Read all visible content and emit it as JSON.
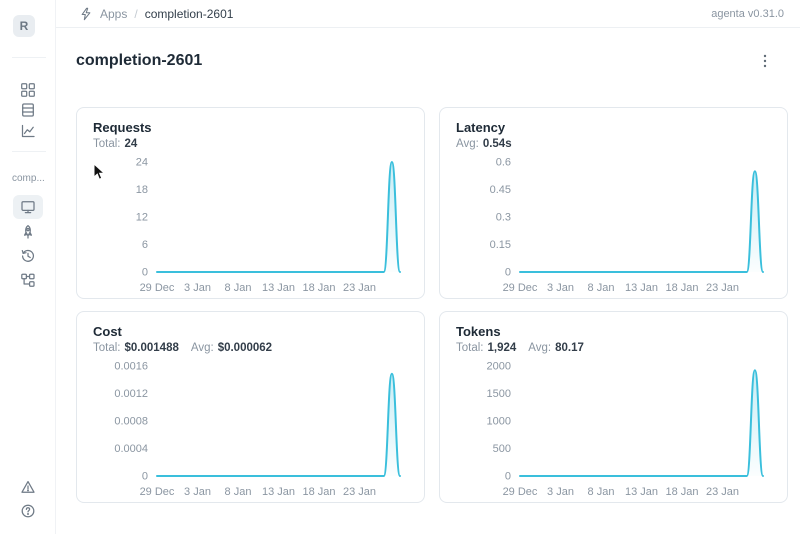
{
  "accent_color": "#3ABFDC",
  "header": {
    "breadcrumb": {
      "section": "Apps",
      "separator": "/",
      "current": "completion-2601"
    },
    "version_label": "agenta v0.31.0"
  },
  "sidebar": {
    "avatar_letter": "R",
    "app_label": "comp...",
    "icons": [
      "apps-grid",
      "table-rows",
      "line-chart",
      "monitor",
      "rocket",
      "history",
      "workflow-tree"
    ],
    "footer_icons": [
      "triangle-alert",
      "help-circle"
    ]
  },
  "page": {
    "title": "completion-2601",
    "menu_icon": "kebab-vertical"
  },
  "chart_data": [
    {
      "id": "requests",
      "type": "line",
      "title": "Requests",
      "stats": [
        {
          "label": "Total:",
          "value": "24"
        }
      ],
      "y_ticks": [
        "0",
        "6",
        "12",
        "18",
        "24"
      ],
      "y_max": 24,
      "x_tick_labels": [
        "29 Dec",
        "3 Jan",
        "8 Jan",
        "13 Jan",
        "18 Jan",
        "23 Jan"
      ],
      "x_tick_indices": [
        0,
        5,
        10,
        15,
        20,
        25
      ],
      "values": [
        0,
        0,
        0,
        0,
        0,
        0,
        0,
        0,
        0,
        0,
        0,
        0,
        0,
        0,
        0,
        0,
        0,
        0,
        0,
        0,
        0,
        0,
        0,
        0,
        0,
        0,
        0,
        0,
        0,
        24,
        0
      ]
    },
    {
      "id": "latency",
      "type": "line",
      "title": "Latency",
      "stats": [
        {
          "label": "Avg:",
          "value": "0.54s"
        }
      ],
      "y_ticks": [
        "0",
        "0.15",
        "0.3",
        "0.45",
        "0.6"
      ],
      "y_max": 0.6,
      "x_tick_labels": [
        "29 Dec",
        "3 Jan",
        "8 Jan",
        "13 Jan",
        "18 Jan",
        "23 Jan"
      ],
      "x_tick_indices": [
        0,
        5,
        10,
        15,
        20,
        25
      ],
      "values": [
        0,
        0,
        0,
        0,
        0,
        0,
        0,
        0,
        0,
        0,
        0,
        0,
        0,
        0,
        0,
        0,
        0,
        0,
        0,
        0,
        0,
        0,
        0,
        0,
        0,
        0,
        0,
        0,
        0,
        0.55,
        0
      ]
    },
    {
      "id": "cost",
      "type": "line",
      "title": "Cost",
      "stats": [
        {
          "label": "Total:",
          "value": "$0.001488"
        },
        {
          "label": "Avg:",
          "value": "$0.000062"
        }
      ],
      "y_ticks": [
        "0",
        "0.0004",
        "0.0008",
        "0.0012",
        "0.0016"
      ],
      "y_max": 0.0016,
      "x_tick_labels": [
        "29 Dec",
        "3 Jan",
        "8 Jan",
        "13 Jan",
        "18 Jan",
        "23 Jan"
      ],
      "x_tick_indices": [
        0,
        5,
        10,
        15,
        20,
        25
      ],
      "values": [
        0,
        0,
        0,
        0,
        0,
        0,
        0,
        0,
        0,
        0,
        0,
        0,
        0,
        0,
        0,
        0,
        0,
        0,
        0,
        0,
        0,
        0,
        0,
        0,
        0,
        0,
        0,
        0,
        0,
        0.001488,
        0
      ]
    },
    {
      "id": "tokens",
      "type": "line",
      "title": "Tokens",
      "stats": [
        {
          "label": "Total:",
          "value": "1,924"
        },
        {
          "label": "Avg:",
          "value": "80.17"
        }
      ],
      "y_ticks": [
        "0",
        "500",
        "1000",
        "1500",
        "2000"
      ],
      "y_max": 2000,
      "x_tick_labels": [
        "29 Dec",
        "3 Jan",
        "8 Jan",
        "13 Jan",
        "18 Jan",
        "23 Jan"
      ],
      "x_tick_indices": [
        0,
        5,
        10,
        15,
        20,
        25
      ],
      "values": [
        0,
        0,
        0,
        0,
        0,
        0,
        0,
        0,
        0,
        0,
        0,
        0,
        0,
        0,
        0,
        0,
        0,
        0,
        0,
        0,
        0,
        0,
        0,
        0,
        0,
        0,
        0,
        0,
        0,
        1924,
        0
      ]
    }
  ]
}
